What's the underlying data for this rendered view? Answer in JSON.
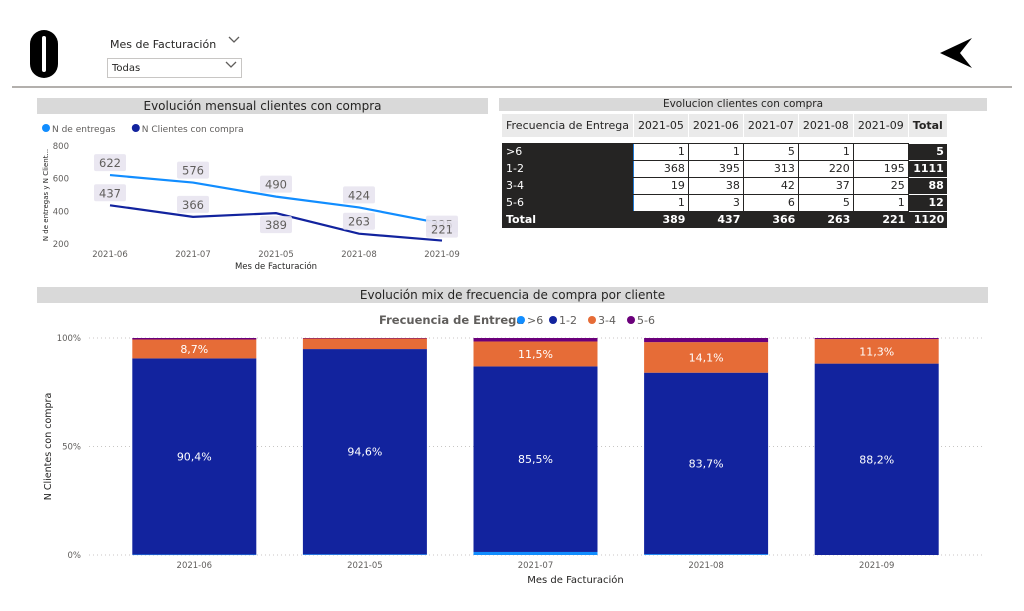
{
  "slicer": {
    "title": "Mes de Facturación",
    "value": "Todas"
  },
  "line_panel": {
    "title": "Evolución mensual clientes con compra"
  },
  "table_panel": {
    "title": "Evolucion clientes con compra",
    "header": [
      "Frecuencia de Entrega",
      "2021-05",
      "2021-06",
      "2021-07",
      "2021-08",
      "2021-09",
      "Total"
    ],
    "rows": [
      [
        ">6",
        "1",
        "1",
        "5",
        "1",
        "",
        "5"
      ],
      [
        "1-2",
        "368",
        "395",
        "313",
        "220",
        "195",
        "1111"
      ],
      [
        "3-4",
        "19",
        "38",
        "42",
        "37",
        "25",
        "88"
      ],
      [
        "5-6",
        "1",
        "3",
        "6",
        "5",
        "1",
        "12"
      ]
    ],
    "total": [
      "Total",
      "389",
      "437",
      "366",
      "263",
      "221",
      "1120"
    ]
  },
  "mix_panel": {
    "title": "Evolución mix de frecuencia de compra por cliente"
  },
  "chart_data": [
    {
      "type": "line",
      "title": "Evolución mensual clientes con compra",
      "xlabel": "Mes de Facturación",
      "ylabel": "N de entregas y N Client...",
      "categories": [
        "2021-06",
        "2021-07",
        "2021-05",
        "2021-08",
        "2021-09"
      ],
      "series": [
        {
          "name": "N de entregas",
          "color": "#118dff",
          "values": [
            622,
            576,
            490,
            424,
            325
          ]
        },
        {
          "name": "N Clientes con compra",
          "color": "#12239e",
          "values": [
            437,
            366,
            389,
            263,
            221
          ]
        }
      ],
      "yticks": [
        "200",
        "400",
        "600",
        "800"
      ],
      "ylim": [
        200,
        800
      ],
      "legend": "top-left",
      "grid": false
    },
    {
      "type": "bar",
      "stacked": "percent",
      "title": "Evolución mix de frecuencia de compra por cliente",
      "legend_title": "Frecuencia de Entrega",
      "xlabel": "Mes de Facturación",
      "ylabel": "N Clientes con compra",
      "categories": [
        "2021-06",
        "2021-05",
        "2021-07",
        "2021-08",
        "2021-09"
      ],
      "series": [
        {
          "name": ">6",
          "color": "#118dff",
          "values": [
            0.2,
            0.3,
            1.4,
            0.4,
            0.0
          ]
        },
        {
          "name": "1-2",
          "color": "#12239e",
          "values": [
            90.4,
            94.6,
            85.5,
            83.7,
            88.2
          ]
        },
        {
          "name": "3-4",
          "color": "#e66c37",
          "values": [
            8.7,
            4.9,
            11.5,
            14.1,
            11.3
          ]
        },
        {
          "name": "5-6",
          "color": "#6b007b",
          "values": [
            0.7,
            0.2,
            1.6,
            1.9,
            0.5
          ]
        }
      ],
      "data_labels": [
        [
          "",
          "90,4%",
          "8,7%",
          ""
        ],
        [
          "",
          "94,6%",
          "",
          ""
        ],
        [
          "",
          "85,5%",
          "11,5%",
          ""
        ],
        [
          "",
          "83,7%",
          "14,1%",
          ""
        ],
        [
          "",
          "88,2%",
          "11,3%",
          ""
        ]
      ],
      "yticks": [
        "0%",
        "50%",
        "100%"
      ],
      "ylim": [
        0,
        100
      ],
      "legend": "top-center",
      "grid": true
    }
  ]
}
